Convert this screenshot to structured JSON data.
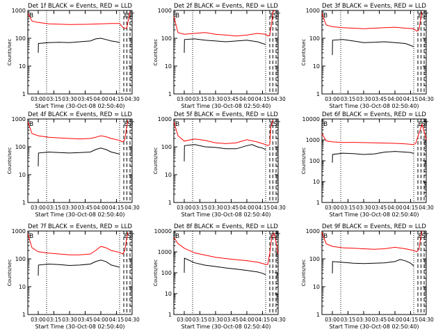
{
  "colors": {
    "background": "#ffffff",
    "axis": "#000000",
    "events": "#000000",
    "lld": "#ff0000"
  },
  "chart_data": [
    {
      "type": "line",
      "title": "Det 1f BLACK = Events, RED = LLD",
      "xlabel": "Start Time (30-Oct-08 02:50:40)",
      "ylabel": "Counts/sec",
      "y_scale": "log",
      "ylim": [
        1,
        1000
      ],
      "y_ticks": [
        1,
        10,
        100,
        1000
      ],
      "x_ticks": [
        "03:00",
        "03:15",
        "03:30",
        "03:45",
        "04:00",
        "04:15",
        "04:30"
      ],
      "markers": [
        "B",
        "E",
        "S",
        "T"
      ],
      "series": [
        {
          "name": "LLD",
          "color": "#ff0000",
          "x": [
            0,
            0.04,
            0.08,
            0.2,
            0.4,
            0.6,
            0.8,
            0.88,
            0.91,
            0.93,
            0.95,
            0.97,
            0.98
          ],
          "y": [
            800,
            420,
            380,
            330,
            310,
            320,
            340,
            340,
            250,
            220,
            240,
            600,
            900
          ]
        },
        {
          "name": "Events",
          "color": "#000000",
          "x": [
            0.1,
            0.102,
            0.2,
            0.3,
            0.4,
            0.5,
            0.6,
            0.65,
            0.7,
            0.75,
            0.8,
            0.85,
            0.88
          ],
          "y": [
            30,
            65,
            70,
            72,
            70,
            75,
            80,
            95,
            100,
            90,
            80,
            75,
            70
          ]
        }
      ]
    },
    {
      "type": "line",
      "title": "Det 2f BLACK = Events, RED = LLD",
      "xlabel": "Start Time (30-Oct-08 02:50:40)",
      "ylabel": "Counts/sec",
      "y_scale": "log",
      "ylim": [
        1,
        1000
      ],
      "y_ticks": [
        1,
        10,
        100,
        1000
      ],
      "x_ticks": [
        "03:00",
        "03:15",
        "03:30",
        "03:45",
        "04:00",
        "04:15",
        "04:30"
      ],
      "markers": [
        "B",
        "E",
        "S",
        "T"
      ],
      "series": [
        {
          "name": "LLD",
          "color": "#ff0000",
          "x": [
            0,
            0.04,
            0.1,
            0.2,
            0.3,
            0.4,
            0.5,
            0.6,
            0.7,
            0.8,
            0.88,
            0.9,
            0.92,
            0.94,
            0.95,
            0.97
          ],
          "y": [
            600,
            160,
            140,
            150,
            160,
            140,
            130,
            120,
            130,
            150,
            140,
            120,
            130,
            400,
            900,
            1000
          ]
        },
        {
          "name": "Events",
          "color": "#000000",
          "x": [
            0.1,
            0.102,
            0.2,
            0.3,
            0.4,
            0.5,
            0.6,
            0.7,
            0.8,
            0.88
          ],
          "y": [
            30,
            90,
            95,
            85,
            80,
            75,
            80,
            85,
            75,
            60
          ]
        }
      ]
    },
    {
      "type": "line",
      "title": "Det 3f BLACK = Events, RED = LLD",
      "xlabel": "Start Time (30-Oct-08 02:50:40)",
      "ylabel": "Counts/sec",
      "y_scale": "log",
      "ylim": [
        1,
        1000
      ],
      "y_ticks": [
        1,
        10,
        100,
        1000
      ],
      "x_ticks": [
        "03:00",
        "03:15",
        "03:30",
        "03:45",
        "04:00",
        "04:15",
        "04:30"
      ],
      "markers": [
        "B",
        "E",
        "S",
        "T"
      ],
      "series": [
        {
          "name": "LLD",
          "color": "#ff0000",
          "x": [
            0,
            0.04,
            0.1,
            0.2,
            0.3,
            0.4,
            0.5,
            0.6,
            0.7,
            0.8,
            0.88,
            0.91,
            0.93,
            0.95,
            0.96
          ],
          "y": [
            800,
            300,
            260,
            240,
            230,
            220,
            230,
            240,
            250,
            230,
            220,
            180,
            200,
            600,
            900
          ]
        },
        {
          "name": "Events",
          "color": "#000000",
          "x": [
            0.1,
            0.102,
            0.2,
            0.3,
            0.4,
            0.5,
            0.6,
            0.7,
            0.8,
            0.88
          ],
          "y": [
            25,
            85,
            90,
            80,
            70,
            72,
            75,
            70,
            65,
            50
          ]
        }
      ]
    },
    {
      "type": "line",
      "title": "Det 4f BLACK = Events, RED = LLD",
      "xlabel": "Start Time (30-Oct-08 02:50:40)",
      "ylabel": "Counts/sec",
      "y_scale": "log",
      "ylim": [
        1,
        1000
      ],
      "y_ticks": [
        1,
        10,
        100,
        1000
      ],
      "x_ticks": [
        "03:00",
        "03:15",
        "03:30",
        "03:45",
        "04:00",
        "04:15",
        "04:30"
      ],
      "markers": [
        "B",
        "E",
        "S",
        "T"
      ],
      "series": [
        {
          "name": "LLD",
          "color": "#ff0000",
          "x": [
            0,
            0.04,
            0.1,
            0.2,
            0.3,
            0.4,
            0.5,
            0.6,
            0.65,
            0.7,
            0.75,
            0.8,
            0.88,
            0.91,
            0.93,
            0.95,
            0.96
          ],
          "y": [
            800,
            300,
            250,
            220,
            210,
            200,
            190,
            200,
            220,
            250,
            230,
            200,
            170,
            150,
            180,
            600,
            900
          ]
        },
        {
          "name": "Events",
          "color": "#000000",
          "x": [
            0.1,
            0.102,
            0.2,
            0.3,
            0.4,
            0.5,
            0.6,
            0.65,
            0.7,
            0.75,
            0.8,
            0.88
          ],
          "y": [
            20,
            60,
            65,
            62,
            60,
            62,
            65,
            80,
            90,
            80,
            65,
            55
          ]
        }
      ]
    },
    {
      "type": "line",
      "title": "Det 5f BLACK = Events, RED = LLD",
      "xlabel": "Start Time (30-Oct-08 02:50:40)",
      "ylabel": "Counts/sec",
      "y_scale": "log",
      "ylim": [
        1,
        1000
      ],
      "y_ticks": [
        1,
        10,
        100,
        1000
      ],
      "x_ticks": [
        "03:00",
        "03:15",
        "03:30",
        "03:45",
        "04:00",
        "04:15",
        "04:30"
      ],
      "markers": [
        "B",
        "E",
        "S",
        "T"
      ],
      "series": [
        {
          "name": "LLD",
          "color": "#ff0000",
          "x": [
            0,
            0.04,
            0.1,
            0.2,
            0.3,
            0.4,
            0.5,
            0.6,
            0.7,
            0.8,
            0.85,
            0.88,
            0.9,
            0.92,
            0.93,
            0.95
          ],
          "y": [
            800,
            250,
            160,
            190,
            170,
            140,
            130,
            140,
            180,
            150,
            130,
            120,
            110,
            120,
            500,
            900
          ]
        },
        {
          "name": "Events",
          "color": "#000000",
          "x": [
            0.1,
            0.102,
            0.2,
            0.3,
            0.4,
            0.5,
            0.6,
            0.7,
            0.75,
            0.8,
            0.85,
            0.88
          ],
          "y": [
            30,
            110,
            120,
            100,
            95,
            85,
            85,
            110,
            120,
            100,
            90,
            80
          ]
        }
      ]
    },
    {
      "type": "line",
      "title": "Det 6f BLACK = Events, RED = LLD",
      "xlabel": "Start Time (30-Oct-08 02:50:40)",
      "ylabel": "Counts/sec",
      "y_scale": "log",
      "ylim": [
        1,
        10000
      ],
      "y_ticks": [
        1,
        10,
        100,
        1000,
        10000
      ],
      "x_ticks": [
        "03:00",
        "03:15",
        "03:30",
        "03:45",
        "04:00",
        "04:15",
        "04:30"
      ],
      "markers": [
        "B",
        "E",
        "S",
        "T"
      ],
      "series": [
        {
          "name": "LLD",
          "color": "#ff0000",
          "x": [
            0,
            0.04,
            0.1,
            0.2,
            0.3,
            0.4,
            0.5,
            0.6,
            0.7,
            0.8,
            0.88,
            0.9,
            0.93,
            0.96,
            0.98,
            1.0
          ],
          "y": [
            2000,
            900,
            800,
            750,
            760,
            740,
            720,
            700,
            680,
            640,
            600,
            700,
            2000,
            5500,
            2500,
            1000
          ]
        },
        {
          "name": "Events",
          "color": "#000000",
          "x": [
            0.1,
            0.102,
            0.2,
            0.3,
            0.4,
            0.5,
            0.6,
            0.7,
            0.8,
            0.85,
            0.88
          ],
          "y": [
            80,
            200,
            230,
            220,
            200,
            210,
            260,
            280,
            260,
            250,
            220
          ]
        }
      ]
    },
    {
      "type": "line",
      "title": "Det 7f BLACK = Events, RED = LLD",
      "xlabel": "Start Time (30-Oct-08 02:50:40)",
      "ylabel": "Counts/sec",
      "y_scale": "log",
      "ylim": [
        1,
        1000
      ],
      "y_ticks": [
        1,
        10,
        100,
        1000
      ],
      "x_ticks": [
        "03:00",
        "03:15",
        "03:30",
        "03:45",
        "04:00",
        "04:15",
        "04:30"
      ],
      "markers": [
        "B",
        "E",
        "S",
        "T"
      ],
      "series": [
        {
          "name": "LLD",
          "color": "#ff0000",
          "x": [
            0,
            0.04,
            0.1,
            0.2,
            0.3,
            0.4,
            0.5,
            0.6,
            0.65,
            0.7,
            0.75,
            0.8,
            0.88,
            0.91,
            0.93,
            0.95,
            0.96
          ],
          "y": [
            800,
            250,
            180,
            160,
            150,
            140,
            140,
            150,
            200,
            280,
            250,
            200,
            170,
            150,
            200,
            600,
            900
          ]
        },
        {
          "name": "Events",
          "color": "#000000",
          "x": [
            0.1,
            0.102,
            0.2,
            0.3,
            0.4,
            0.5,
            0.6,
            0.65,
            0.7,
            0.75,
            0.8,
            0.88
          ],
          "y": [
            25,
            60,
            65,
            62,
            58,
            60,
            65,
            80,
            90,
            80,
            60,
            50
          ]
        }
      ]
    },
    {
      "type": "line",
      "title": "Det 8f BLACK = Events, RED = LLD",
      "xlabel": "Start Time (30-Oct-08 02:50:40)",
      "ylabel": "Counts/sec",
      "y_scale": "log",
      "ylim": [
        1,
        10000
      ],
      "y_ticks": [
        1,
        10,
        100,
        1000,
        10000
      ],
      "x_ticks": [
        "03:00",
        "03:15",
        "03:30",
        "03:45",
        "04:00",
        "04:15",
        "04:30"
      ],
      "markers": [
        "B",
        "E",
        "S",
        "T"
      ],
      "series": [
        {
          "name": "LLD",
          "color": "#ff0000",
          "x": [
            0,
            0.04,
            0.1,
            0.2,
            0.3,
            0.4,
            0.5,
            0.6,
            0.7,
            0.8,
            0.85,
            0.88,
            0.9,
            0.92,
            0.94,
            0.96,
            0.98,
            1.0
          ],
          "y": [
            5000,
            2500,
            1500,
            900,
            700,
            550,
            480,
            420,
            380,
            320,
            280,
            250,
            250,
            900,
            5500,
            8000,
            3000,
            800
          ]
        },
        {
          "name": "Events",
          "color": "#000000",
          "x": [
            0.1,
            0.102,
            0.2,
            0.3,
            0.4,
            0.5,
            0.6,
            0.7,
            0.8,
            0.85,
            0.88
          ],
          "y": [
            100,
            500,
            300,
            230,
            200,
            170,
            150,
            130,
            110,
            95,
            80
          ]
        }
      ]
    },
    {
      "type": "line",
      "title": "Det 9f BLACK = Events, RED = LLD",
      "xlabel": "Start Time (30-Oct-08 02:50:40)",
      "ylabel": "Counts/sec",
      "y_scale": "log",
      "ylim": [
        1,
        1000
      ],
      "y_ticks": [
        1,
        10,
        100,
        1000
      ],
      "x_ticks": [
        "03:00",
        "03:15",
        "03:30",
        "03:45",
        "04:00",
        "04:15",
        "04:30"
      ],
      "markers": [
        "B",
        "E",
        "S",
        "T"
      ],
      "series": [
        {
          "name": "LLD",
          "color": "#ff0000",
          "x": [
            0,
            0.04,
            0.1,
            0.2,
            0.3,
            0.4,
            0.5,
            0.6,
            0.7,
            0.8,
            0.88,
            0.91,
            0.93,
            0.95,
            0.96
          ],
          "y": [
            900,
            350,
            280,
            250,
            240,
            230,
            220,
            230,
            260,
            230,
            200,
            180,
            220,
            700,
            1000
          ]
        },
        {
          "name": "Events",
          "color": "#000000",
          "x": [
            0.1,
            0.102,
            0.2,
            0.3,
            0.4,
            0.5,
            0.6,
            0.7,
            0.75,
            0.8,
            0.85,
            0.88
          ],
          "y": [
            30,
            80,
            75,
            70,
            68,
            70,
            72,
            80,
            95,
            85,
            70,
            55
          ]
        }
      ]
    }
  ]
}
